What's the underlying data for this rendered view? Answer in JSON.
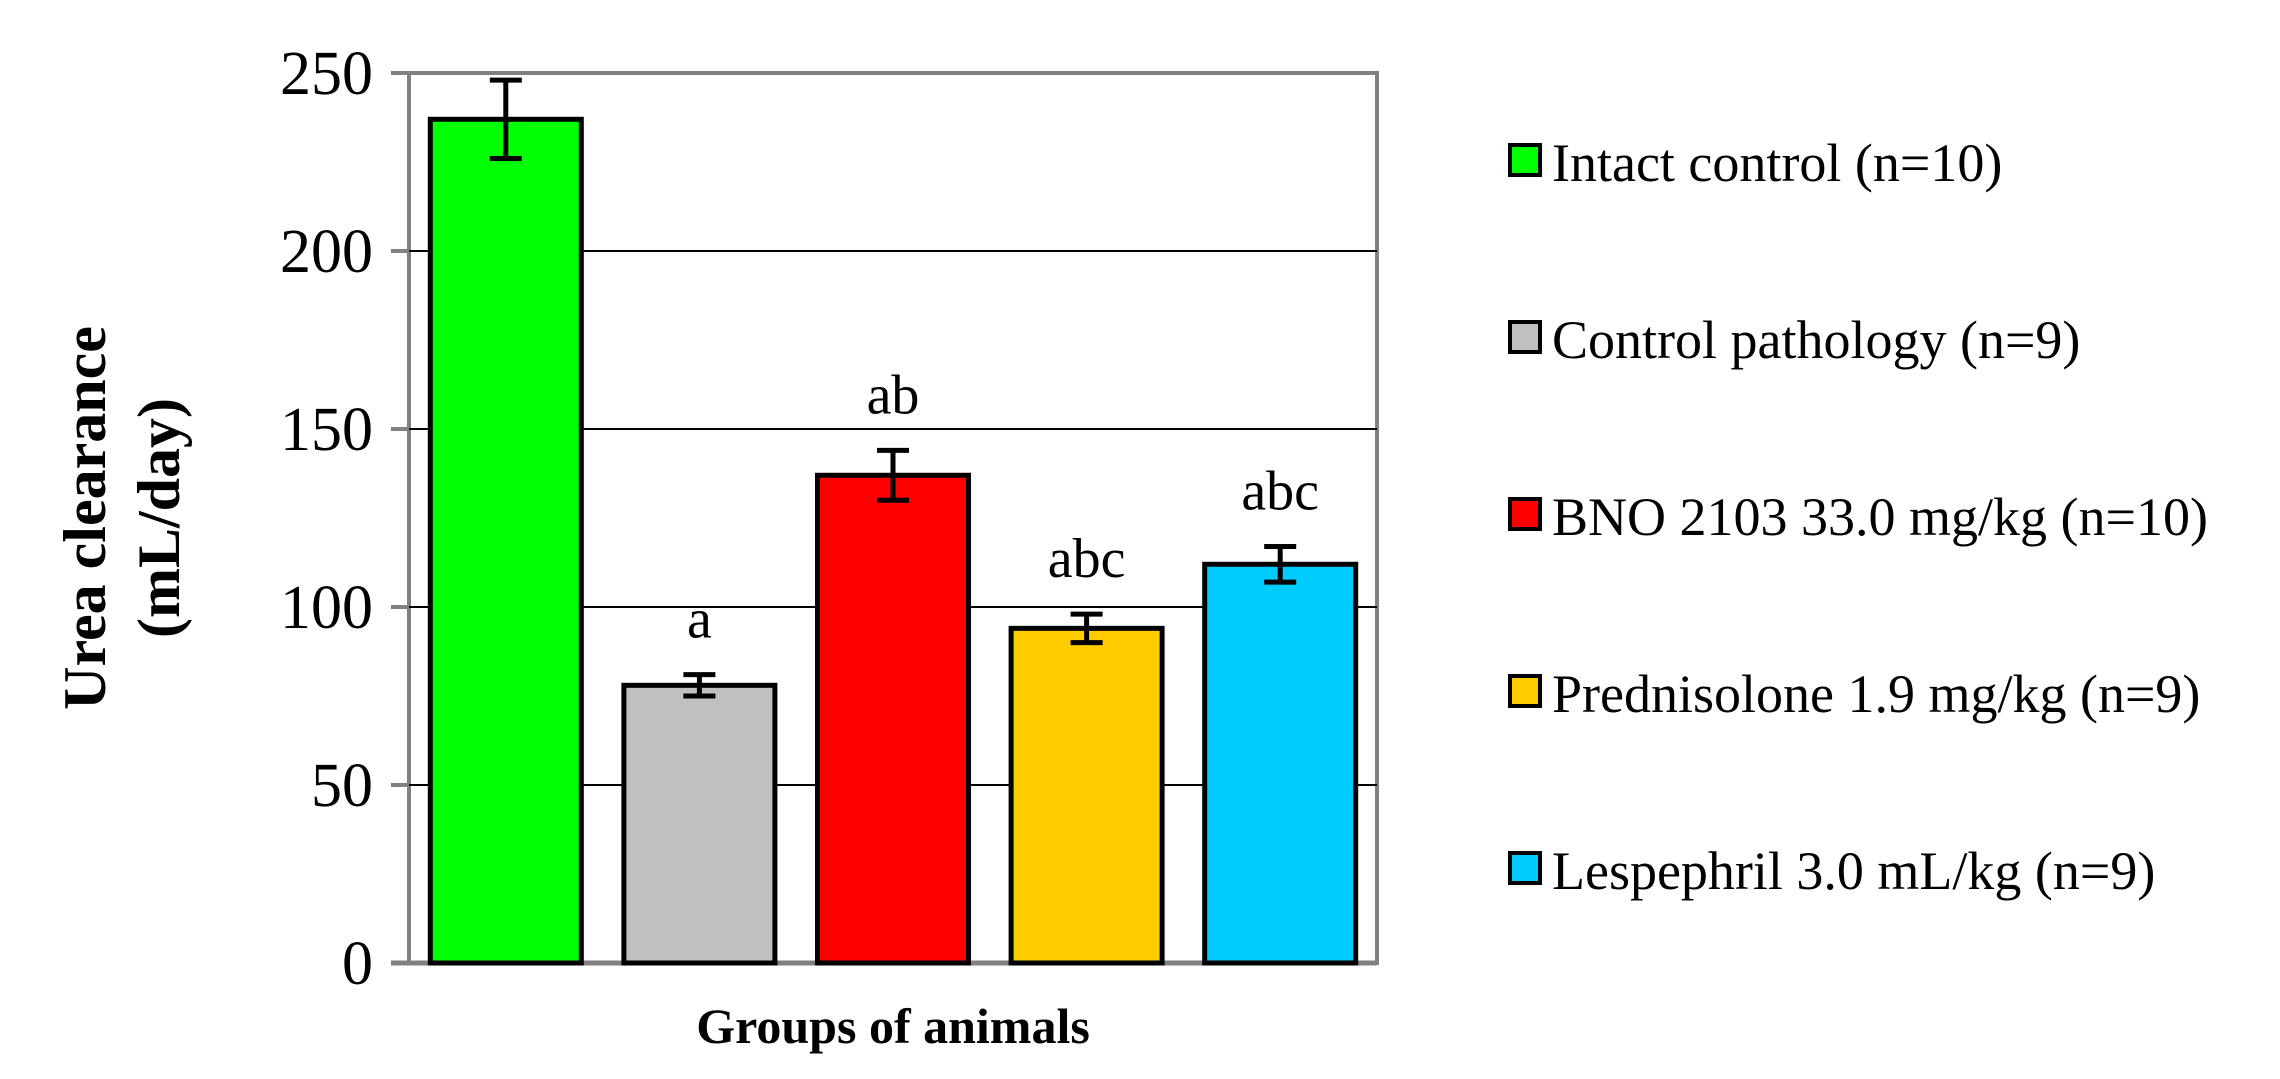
{
  "chart_data": {
    "type": "bar",
    "title": "",
    "xlabel": "Groups of animals",
    "ylabel_line1": "Urea clearance",
    "ylabel_line2": "(mL/day)",
    "ylim": [
      0,
      250
    ],
    "yticks": [
      0,
      50,
      100,
      150,
      200,
      250
    ],
    "grid": true,
    "legend_position": "right",
    "series": [
      {
        "name": "Intact control (n=10)",
        "value": 237,
        "error": 11,
        "color": "#00ff00",
        "annotation": ""
      },
      {
        "name": "Control pathology (n=9)",
        "value": 78,
        "error": 3,
        "color": "#c0c0c0",
        "annotation": "a"
      },
      {
        "name": "BNO 2103 33.0 mg/kg (n=10)",
        "value": 137,
        "error": 7,
        "color": "#ff0000",
        "annotation": "ab"
      },
      {
        "name": "Prednisolone 1.9 mg/kg (n=9)",
        "value": 94,
        "error": 4,
        "color": "#ffcc00",
        "annotation": "abc"
      },
      {
        "name": "Lespephril 3.0 mL/kg (n=9)",
        "value": 112,
        "error": 5,
        "color": "#00ccff",
        "annotation": "abc"
      }
    ]
  }
}
